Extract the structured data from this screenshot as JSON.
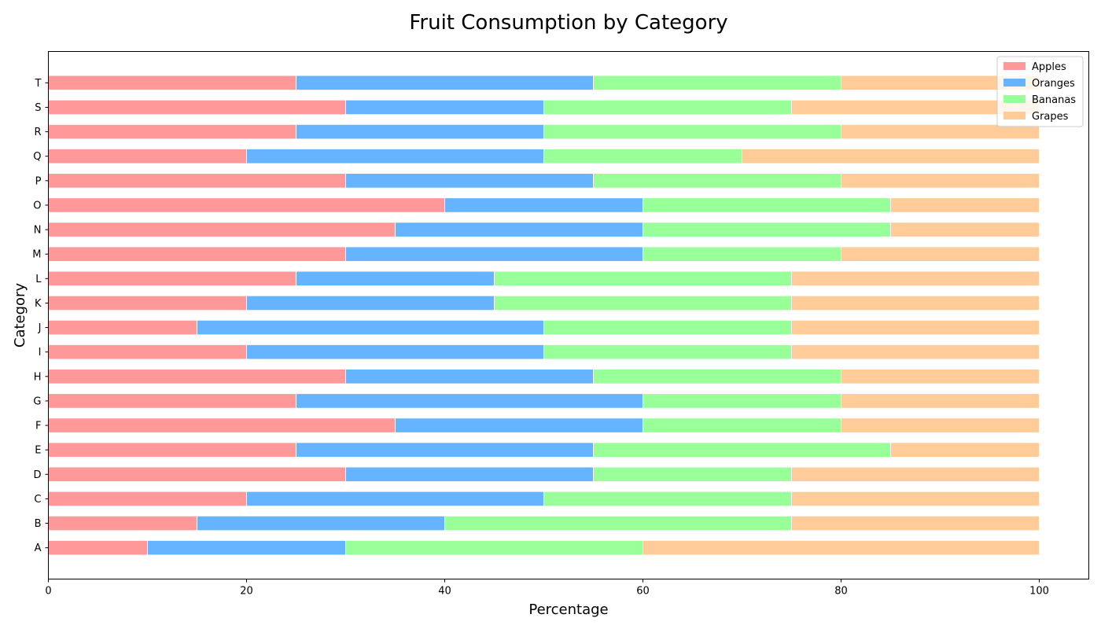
{
  "chart_data": {
    "type": "bar",
    "orientation": "horizontal",
    "stacked": true,
    "title": "Fruit Consumption by Category",
    "xlabel": "Percentage",
    "ylabel": "Category",
    "xlim": [
      0,
      105
    ],
    "xticks": [
      "0",
      "20",
      "40",
      "60",
      "80",
      "100"
    ],
    "grid": false,
    "legend_position": "top-right",
    "categories": [
      "A",
      "B",
      "C",
      "D",
      "E",
      "F",
      "G",
      "H",
      "I",
      "J",
      "K",
      "L",
      "M",
      "N",
      "O",
      "P",
      "Q",
      "R",
      "S",
      "T"
    ],
    "series": [
      {
        "name": "Apples",
        "color": "#ff9999",
        "values": [
          10,
          15,
          20,
          30,
          25,
          35,
          25,
          30,
          20,
          15,
          20,
          25,
          30,
          35,
          40,
          30,
          20,
          25,
          30,
          25
        ]
      },
      {
        "name": "Oranges",
        "color": "#66b3ff",
        "values": [
          20,
          25,
          30,
          25,
          30,
          25,
          35,
          25,
          30,
          35,
          25,
          20,
          30,
          25,
          20,
          25,
          30,
          25,
          20,
          30
        ]
      },
      {
        "name": "Bananas",
        "color": "#99ff99",
        "values": [
          30,
          35,
          25,
          20,
          30,
          20,
          20,
          25,
          25,
          25,
          30,
          30,
          20,
          25,
          25,
          25,
          20,
          30,
          25,
          25
        ]
      },
      {
        "name": "Grapes",
        "color": "#ffcc99",
        "values": [
          40,
          25,
          25,
          25,
          15,
          20,
          20,
          20,
          25,
          25,
          25,
          25,
          20,
          15,
          15,
          20,
          30,
          20,
          25,
          20
        ]
      }
    ]
  }
}
